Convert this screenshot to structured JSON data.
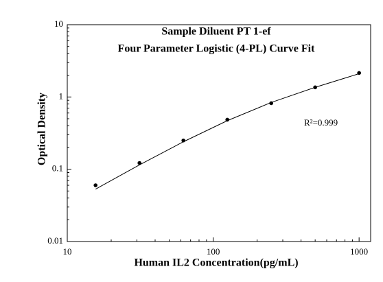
{
  "chart_data": {
    "type": "scatter",
    "title": [
      "Sample Diluent PT 1-ef",
      "Four Parameter Logistic (4-PL) Curve Fit"
    ],
    "x_label": "Human IL2 Concentration(pg/mL)",
    "y_label": "Optical Density",
    "annotation": "R²=0.999",
    "x_scale": "log",
    "y_scale": "log",
    "minor_ticks": true,
    "xlim": [
      10,
      1200
    ],
    "ylim": [
      0.01,
      10
    ],
    "xticks": [
      10,
      100,
      1000
    ],
    "yticks": [
      0.01,
      0.1,
      1,
      10
    ],
    "series": [
      {
        "kind": "points",
        "color": "#000000",
        "x": [
          15.625,
          31.25,
          62.5,
          125,
          250,
          500,
          1000
        ],
        "values": [
          0.06,
          0.122,
          0.25,
          0.485,
          0.82,
          1.36,
          2.15
        ]
      },
      {
        "kind": "curve",
        "color": "#000000",
        "x": [
          15.625,
          31.25,
          62.5,
          125,
          250,
          500,
          1000
        ],
        "values": [
          0.053,
          0.115,
          0.24,
          0.47,
          0.84,
          1.36,
          2.1
        ]
      }
    ]
  }
}
